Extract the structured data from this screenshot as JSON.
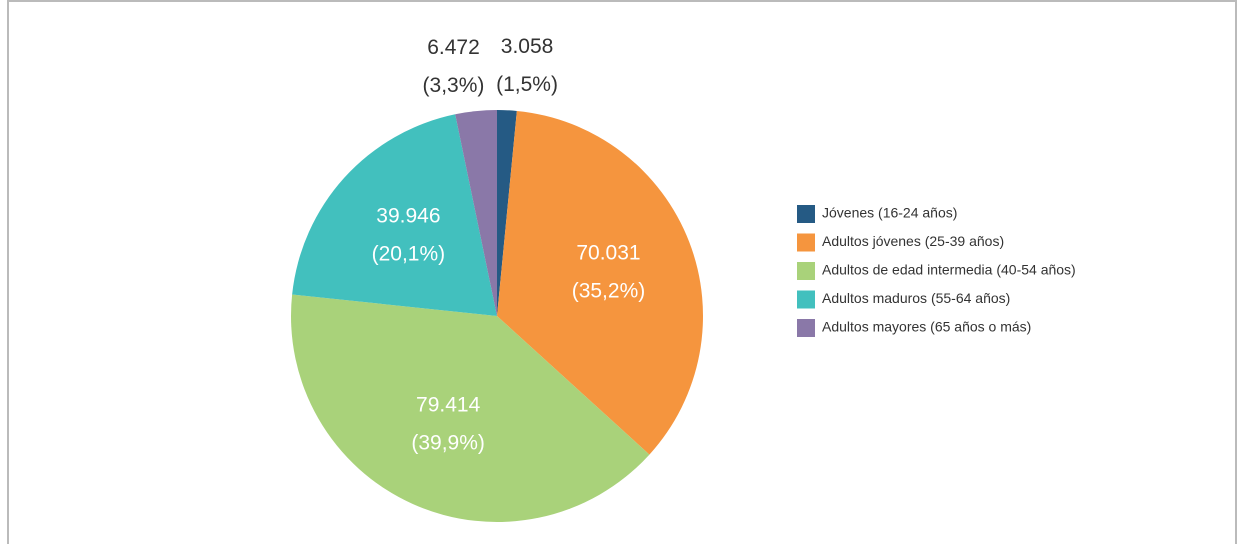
{
  "chart_data": {
    "type": "pie",
    "categories": [
      "Jóvenes (16-24 años)",
      "Adultos jóvenes (25-39 años)",
      "Adultos de edad intermedia (40-54 años)",
      "Adultos maduros (55-64 años)",
      "Adultos mayores (65 años o más)"
    ],
    "values": [
      3058,
      70031,
      79414,
      39946,
      6472
    ],
    "value_labels": [
      "3.058",
      "70.031",
      "79.414",
      "39.946",
      "6.472"
    ],
    "percent_labels": [
      "(1,5%)",
      "(35,2%)",
      "(39,9%)",
      "(20,1%)",
      "(3,3%)"
    ],
    "colors": [
      "#255a84",
      "#f5953e",
      "#a9d27a",
      "#42c0be",
      "#8a78a8"
    ],
    "legend": "right"
  }
}
